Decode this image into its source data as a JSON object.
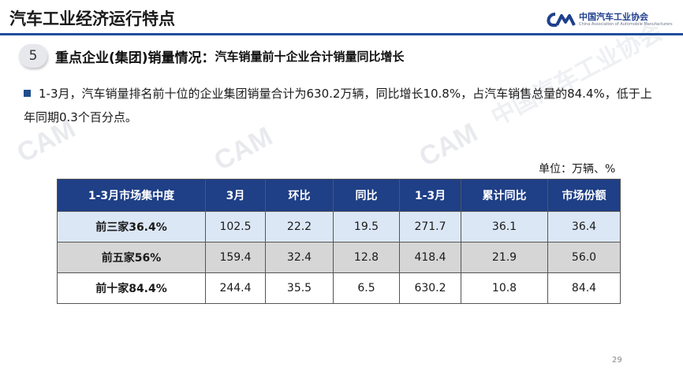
{
  "header": {
    "title": "汽车工业经济运行特点",
    "logo_cn": "中国汽车工业协会",
    "logo_en": "China Association of Automobile Manufacturers"
  },
  "section": {
    "number": "5",
    "title": "重点企业(集团)销量情况：",
    "subtitle": "汽车销量前十企业合计销量同比增长"
  },
  "bullet": {
    "text": "1-3月，汽车销量排名前十位的企业集团销量合计为630.2万辆，同比增长10.8%，占汽车销售总量的84.4%，低于上年同期0.3个百分点。"
  },
  "unit_label": "单位：万辆、%",
  "table": {
    "headers": [
      "1-3月市场集中度",
      "3月",
      "环比",
      "同比",
      "1-3月",
      "累计同比",
      "市场份额"
    ],
    "rows": [
      [
        "前三家36.4%",
        "102.5",
        "22.2",
        "19.5",
        "271.7",
        "36.1",
        "36.4"
      ],
      [
        "前五家56%",
        "159.4",
        "32.4",
        "12.8",
        "418.4",
        "21.9",
        "56.0"
      ],
      [
        "前十家84.4%",
        "244.4",
        "35.5",
        "6.5",
        "630.2",
        "10.8",
        "84.4"
      ]
    ]
  },
  "page_number": "29",
  "colors": {
    "header_fill": "#1f3f86",
    "row1_fill": "#dce7f6",
    "row2_fill": "#d6d6d6",
    "accent": "#1f4e9e"
  }
}
